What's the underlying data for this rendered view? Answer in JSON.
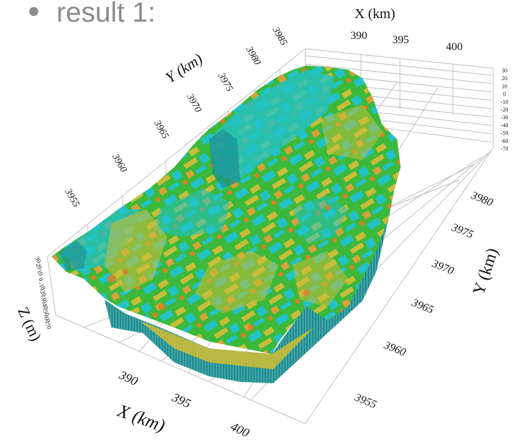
{
  "slide": {
    "bullet_text": "result 1:"
  },
  "chart_data": {
    "type": "surface-3d",
    "title": "",
    "x_axis": {
      "label": "X (km)",
      "ticks": [
        "390",
        "395",
        "400"
      ],
      "range": [
        386,
        403
      ]
    },
    "y_axis": {
      "label": "Y (km)",
      "ticks_back": [
        "3955",
        "3960",
        "3965",
        "3970",
        "3975",
        "3980",
        "3985"
      ],
      "ticks_right": [
        "3955",
        "3960",
        "3965",
        "3970",
        "3975",
        "3980"
      ],
      "range": [
        3951,
        3986
      ]
    },
    "z_axis": {
      "label": "Z (m)",
      "ticks": [
        "30",
        "20",
        "10",
        "0",
        "-10",
        "-20",
        "-30",
        "-40",
        "-50",
        "-60",
        "-70"
      ],
      "range": [
        -70,
        30
      ]
    },
    "grid": true,
    "colors": {
      "cyan": "#23c2c8",
      "green": "#3cb93a",
      "yellow_olive": "#c9bd3a",
      "orange": "#d8802a",
      "teal_side": "#2c9aa0"
    }
  }
}
